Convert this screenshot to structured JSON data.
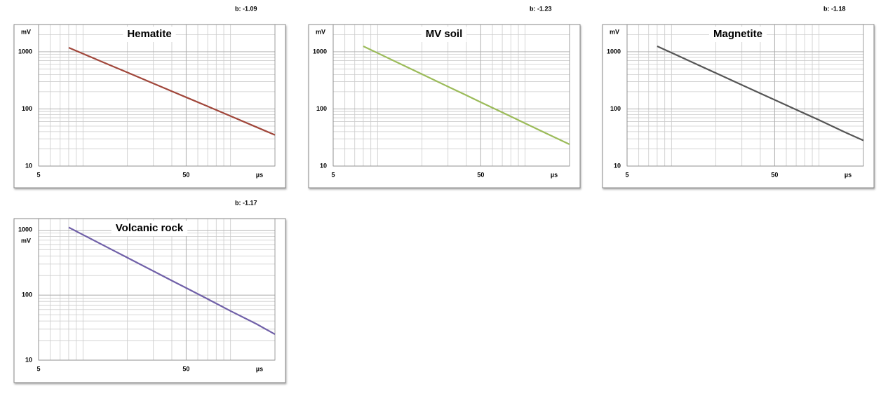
{
  "chart_data": [
    {
      "type": "line",
      "title": "Hematite",
      "annotation": "b: -1.09",
      "ylabel": "mV",
      "xlabel": "µs",
      "log_x": true,
      "log_y": true,
      "grid": true,
      "x": [
        8,
        10,
        15,
        20,
        30,
        40,
        50,
        70,
        100,
        150,
        200
      ],
      "series": [
        {
          "name": "Hematite",
          "color": "#a0463a",
          "values": [
            1180,
            925,
            594,
            435,
            279,
            204,
            160,
            111,
            75,
            48,
            35
          ]
        }
      ],
      "xlim": [
        5,
        200
      ],
      "xticks": [
        5,
        50
      ],
      "ylim": [
        10,
        3000
      ],
      "yticks": [
        10,
        100,
        1000
      ]
    },
    {
      "type": "line",
      "title": "MV soil",
      "annotation": "b: -1.23",
      "ylabel": "mV",
      "xlabel": "µs",
      "log_x": true,
      "log_y": true,
      "grid": true,
      "x": [
        8,
        10,
        15,
        20,
        30,
        40,
        50,
        70,
        100,
        150,
        200
      ],
      "series": [
        {
          "name": "MV soil",
          "color": "#9bbb59",
          "values": [
            1250,
            951,
            577,
            405,
            246,
            173,
            131,
            87,
            56,
            34,
            24
          ]
        }
      ],
      "xlim": [
        5,
        200
      ],
      "xticks": [
        5,
        50
      ],
      "ylim": [
        10,
        3000
      ],
      "yticks": [
        10,
        100,
        1000
      ]
    },
    {
      "type": "line",
      "title": "Magnetite",
      "annotation": "b: -1.18",
      "ylabel": "mV",
      "xlabel": "µs",
      "log_x": true,
      "log_y": true,
      "grid": true,
      "x": [
        8,
        10,
        15,
        20,
        30,
        40,
        50,
        70,
        100,
        150,
        200
      ],
      "series": [
        {
          "name": "Magnetite",
          "color": "#555555",
          "values": [
            1250,
            962,
            596,
            424,
            263,
            187,
            144,
            97,
            64,
            39,
            28
          ]
        }
      ],
      "xlim": [
        5,
        200
      ],
      "xticks": [
        5,
        50
      ],
      "ylim": [
        10,
        3000
      ],
      "yticks": [
        10,
        100,
        1000
      ]
    },
    {
      "type": "line",
      "title": "Volcanic rock",
      "annotation": "b: -1.17",
      "ylabel": "mV",
      "xlabel": "µs",
      "log_x": true,
      "log_y": true,
      "grid": true,
      "x": [
        8,
        10,
        15,
        20,
        30,
        40,
        50,
        70,
        100,
        150,
        200
      ],
      "series": [
        {
          "name": "Volcanic rock",
          "color": "#7060a8",
          "values": [
            1100,
            847,
            527,
            376,
            234,
            167,
            129,
            87,
            57,
            36,
            25
          ]
        }
      ],
      "xlim": [
        5,
        200
      ],
      "xticks": [
        5,
        50
      ],
      "ylim": [
        10,
        1500
      ],
      "yticks": [
        10,
        100,
        1000
      ]
    }
  ]
}
